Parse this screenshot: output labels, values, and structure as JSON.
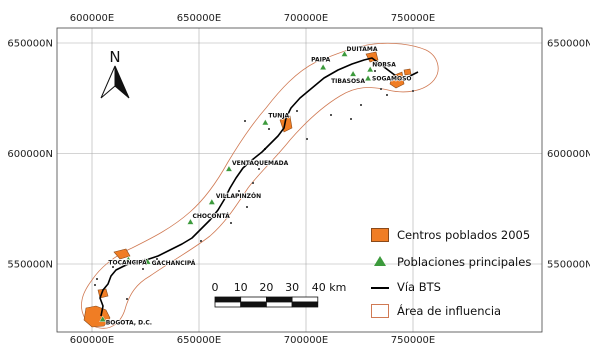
{
  "map": {
    "x_ticks": [
      {
        "value": 600000,
        "label": "600000E"
      },
      {
        "value": 650000,
        "label": "650000E"
      },
      {
        "value": 700000,
        "label": "700000E"
      },
      {
        "value": 750000,
        "label": "750000E"
      }
    ],
    "y_ticks": [
      {
        "value": 650000,
        "label": "650000N"
      },
      {
        "value": 600000,
        "label": "600000N"
      },
      {
        "value": 550000,
        "label": "550000N"
      }
    ],
    "north_arrow": {
      "label": "N",
      "icon": "north-arrow-icon"
    },
    "scale_bar": {
      "labels": [
        "0",
        "10",
        "20",
        "30",
        "40 km"
      ],
      "unit": "km"
    },
    "towns": [
      {
        "name": "DUITAMA",
        "x": 718000,
        "y": 645000
      },
      {
        "name": "PAIPA",
        "x": 708000,
        "y": 639000
      },
      {
        "name": "TIBASOSA",
        "x": 722000,
        "y": 636000
      },
      {
        "name": "NOBSA",
        "x": 730000,
        "y": 638000
      },
      {
        "name": "SOGAMOSO",
        "x": 729000,
        "y": 634000
      },
      {
        "name": "TUNJA",
        "x": 681000,
        "y": 614000
      },
      {
        "name": "VENTAQUEMADA",
        "x": 664000,
        "y": 593000
      },
      {
        "name": "VILLAPINZÓN",
        "x": 656000,
        "y": 578000
      },
      {
        "name": "CHOCONTÁ",
        "x": 646000,
        "y": 569000
      },
      {
        "name": "GACHANCIPÁ",
        "x": 626000,
        "y": 551000
      },
      {
        "name": "TOCANCIPÁ",
        "x": 617000,
        "y": 552000
      },
      {
        "name": "BOGOTA, D.C.",
        "x": 605000,
        "y": 525000
      }
    ],
    "colors": {
      "centros": "#f07d24",
      "centros_stroke": "#8a4a1a",
      "poblaciones": "#3c9a3c",
      "via": "#000000",
      "influencia": "#d07a54",
      "grid": "#aaaaaa"
    }
  },
  "legend": {
    "items": [
      {
        "label": "Centros poblados 2005",
        "symbol": "fill"
      },
      {
        "label": "Poblaciones principales",
        "symbol": "triangle"
      },
      {
        "label": "Vía BTS",
        "symbol": "line"
      },
      {
        "label": "Área de influencia",
        "symbol": "buffer"
      }
    ]
  }
}
